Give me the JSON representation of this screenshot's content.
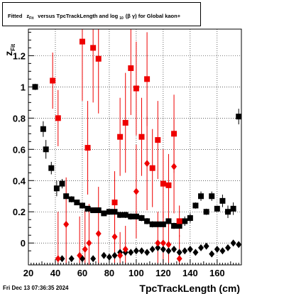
{
  "title": {
    "prefix": "Fitted",
    "z": "z",
    "z_sub": "Fit",
    "mid": "versus TpcTrackLength and log",
    "log_sub": "10",
    "paren": "(β γ) for Global kaon+"
  },
  "datestamp": "Fri Dec 13 07:36:35 2024",
  "chart_data": {
    "type": "scatter",
    "xlabel": "TpcTrackLength (cm)",
    "ylabel_main": "z",
    "ylabel_sub": "Fit",
    "xlim": [
      20,
      178
    ],
    "ylim": [
      -0.14,
      1.37
    ],
    "xticks": [
      20,
      40,
      60,
      80,
      100,
      120,
      140,
      160
    ],
    "yticks": [
      0,
      0.2,
      0.4,
      0.6,
      0.8,
      1,
      1.2
    ],
    "ytick_labels": [
      "0",
      "0.2",
      "0.4",
      "0.6",
      "0.8",
      "1",
      "1.2"
    ],
    "grid": true,
    "series": [
      {
        "marker": "square",
        "color": "#000000",
        "points": [
          [
            25,
            1.0,
            0.02
          ],
          [
            31,
            0.73,
            0.05
          ],
          [
            33,
            0.6,
            0.06
          ],
          [
            37,
            0.48,
            0.04
          ],
          [
            41,
            0.35,
            0.05
          ],
          [
            45,
            0.38,
            0.03
          ],
          [
            48,
            0.3,
            0.02
          ],
          [
            52,
            0.28,
            0.02
          ],
          [
            56,
            0.26,
            0.015
          ],
          [
            60,
            0.24,
            0.015
          ],
          [
            64,
            0.22,
            0.015
          ],
          [
            68,
            0.21,
            0.015
          ],
          [
            72,
            0.21,
            0.015
          ],
          [
            76,
            0.19,
            0.015
          ],
          [
            80,
            0.2,
            0.015
          ],
          [
            84,
            0.2,
            0.02
          ],
          [
            88,
            0.18,
            0.02
          ],
          [
            92,
            0.18,
            0.02
          ],
          [
            96,
            0.17,
            0.02
          ],
          [
            100,
            0.17,
            0.02
          ],
          [
            104,
            0.16,
            0.02
          ],
          [
            108,
            0.14,
            0.02
          ],
          [
            112,
            0.12,
            0.02
          ],
          [
            116,
            0.12,
            0.02
          ],
          [
            120,
            0.12,
            0.02
          ],
          [
            124,
            0.14,
            0.02
          ],
          [
            128,
            0.11,
            0.02
          ],
          [
            132,
            0.11,
            0.02
          ],
          [
            136,
            0.14,
            0.03
          ],
          [
            140,
            0.16,
            0.03
          ],
          [
            144,
            0.24,
            0.02
          ],
          [
            148,
            0.3,
            0.03
          ],
          [
            152,
            0.2,
            0.02
          ],
          [
            156,
            0.3,
            0.03
          ],
          [
            160,
            0.22,
            0.02
          ],
          [
            164,
            0.27,
            0.04
          ],
          [
            168,
            0.2,
            0.04
          ],
          [
            172,
            0.22,
            0.04
          ],
          [
            176,
            0.81,
            0.05
          ]
        ]
      },
      {
        "marker": "diamond",
        "color": "#000000",
        "points": [
          [
            45,
            -0.1
          ],
          [
            52,
            -0.1
          ],
          [
            60,
            -0.1
          ],
          [
            68,
            -0.1
          ],
          [
            76,
            -0.08
          ],
          [
            80,
            -0.09
          ],
          [
            84,
            -0.08
          ],
          [
            88,
            -0.06
          ],
          [
            92,
            -0.06
          ],
          [
            96,
            -0.06
          ],
          [
            100,
            -0.05
          ],
          [
            104,
            -0.05
          ],
          [
            108,
            -0.06
          ],
          [
            112,
            -0.04
          ],
          [
            116,
            -0.03
          ],
          [
            120,
            -0.04
          ],
          [
            124,
            -0.05
          ],
          [
            128,
            -0.04
          ],
          [
            132,
            -0.06
          ],
          [
            136,
            -0.05
          ],
          [
            140,
            -0.04
          ],
          [
            144,
            -0.06
          ],
          [
            148,
            -0.03
          ],
          [
            152,
            -0.02
          ],
          [
            156,
            -0.07
          ],
          [
            160,
            -0.04
          ],
          [
            164,
            -0.05
          ],
          [
            168,
            -0.03
          ],
          [
            172,
            0.0
          ],
          [
            176,
            -0.01
          ]
        ]
      },
      {
        "marker": "square",
        "color": "#ee0000",
        "points": [
          [
            38,
            1.04,
            0.18
          ],
          [
            42,
            0.8,
            0.18
          ],
          [
            60,
            1.29,
            0.38
          ],
          [
            64,
            0.61,
            0.3
          ],
          [
            68,
            1.25,
            0.35
          ],
          [
            72,
            1.18,
            0.35
          ],
          [
            84,
            0.26,
            0.2
          ],
          [
            88,
            0.68,
            0.25
          ],
          [
            92,
            0.77,
            0.32
          ],
          [
            96,
            1.12,
            0.3
          ],
          [
            100,
            0.99,
            0.3
          ],
          [
            104,
            0.68,
            0.25
          ],
          [
            108,
            1.05,
            0.3
          ],
          [
            112,
            0.48,
            0.25
          ],
          [
            116,
            0.66,
            0.25
          ],
          [
            120,
            0.38,
            0.22
          ],
          [
            124,
            0.37,
            0.2
          ],
          [
            128,
            0.7,
            0.25
          ],
          [
            132,
            0.14,
            0.1
          ]
        ]
      },
      {
        "marker": "diamond",
        "color": "#ee0000",
        "points": [
          [
            42,
            -0.1,
            0.3
          ],
          [
            48,
            0.12,
            0.3
          ],
          [
            58,
            -0.08,
            0.25
          ],
          [
            62,
            -0.04,
            0.25
          ],
          [
            65,
            0.0,
            0.25
          ],
          [
            72,
            0.06,
            0.3
          ],
          [
            84,
            0.04,
            0.2
          ],
          [
            88,
            -0.08,
            0.15
          ],
          [
            92,
            -0.04,
            0.15
          ],
          [
            100,
            0.33,
            0.3
          ],
          [
            108,
            0.51,
            0.3
          ],
          [
            116,
            0.0,
            0.2
          ],
          [
            120,
            0.0,
            0.2
          ],
          [
            124,
            -0.01,
            0.2
          ],
          [
            128,
            0.49,
            0.3
          ],
          [
            132,
            -0.1,
            0.15
          ]
        ]
      }
    ]
  }
}
